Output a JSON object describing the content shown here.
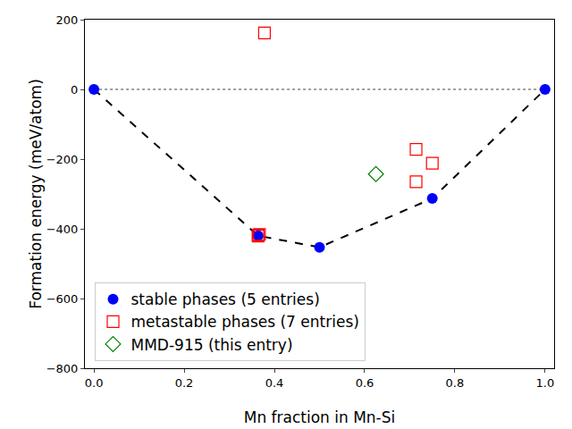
{
  "chart_data": {
    "type": "scatter",
    "xlabel": "Mn fraction in Mn-Si",
    "ylabel": "Formation energy (meV/atom)",
    "xlim": [
      -0.02,
      1.02
    ],
    "ylim": [
      -800,
      200
    ],
    "xticks": [
      {
        "value": 0,
        "label": "0.0"
      },
      {
        "value": 0.2,
        "label": "0.2"
      },
      {
        "value": 0.4,
        "label": "0.4"
      },
      {
        "value": 0.6,
        "label": "0.6"
      },
      {
        "value": 0.8,
        "label": "0.8"
      },
      {
        "value": 1,
        "label": "1.0"
      }
    ],
    "yticks": [
      {
        "value": -800,
        "label": "−800"
      },
      {
        "value": -600,
        "label": "−600"
      },
      {
        "value": -400,
        "label": "−400"
      },
      {
        "value": -200,
        "label": "−200"
      },
      0,
      200
    ],
    "grid": false,
    "legend": "lower left",
    "series": [
      {
        "type": "line",
        "color": "gray",
        "line_style": "dotted",
        "marker": "none",
        "x": [
          0,
          1
        ],
        "values": [
          0,
          0
        ]
      },
      {
        "type": "line",
        "color": "black",
        "line_style": "dashed",
        "marker": "none",
        "x": [
          0,
          0.364,
          0.5,
          0.75,
          1
        ],
        "values": [
          0,
          -420,
          -453,
          -313,
          0
        ]
      },
      {
        "name": "stable phases (5 entries)",
        "type": "scatter",
        "color": "blue",
        "marker": "circle",
        "x": [
          0,
          0.364,
          0.5,
          0.75,
          1
        ],
        "values": [
          0,
          -420,
          -453,
          -313,
          0
        ]
      },
      {
        "name": "metastable phases (7 entries)",
        "type": "scatter",
        "color": "red",
        "marker": "open square",
        "x": [
          0.378,
          0.364,
          0.364,
          0.367,
          0.714,
          0.714,
          0.75
        ],
        "values": [
          162,
          -418,
          -421,
          -416,
          -172,
          -265,
          -212
        ]
      },
      {
        "name": "MMD-915 (this entry)",
        "type": "scatter",
        "color": "green",
        "marker": "open diamond",
        "x": [
          0.625
        ],
        "values": [
          -243
        ]
      }
    ]
  }
}
